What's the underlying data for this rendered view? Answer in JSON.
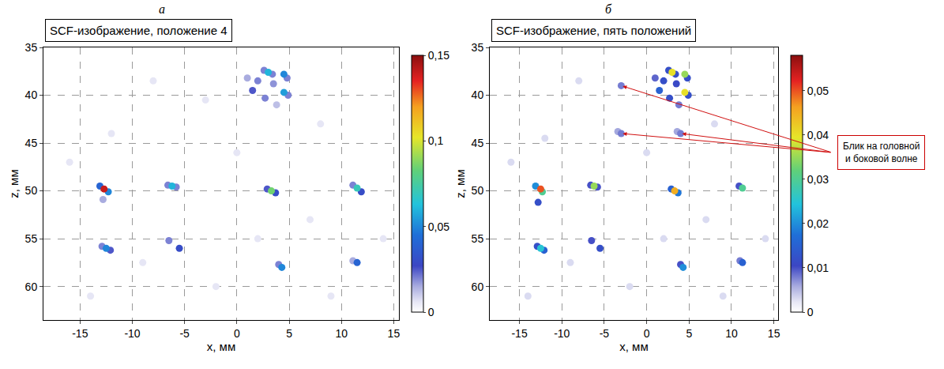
{
  "chart_data": [
    {
      "type": "scatter",
      "letter": "а",
      "title": "SCF-изображение, положение 4",
      "x_label": "x, мм",
      "y_label": "z, мм",
      "xlim": [
        -18.5,
        15.5
      ],
      "ylim": [
        63.5,
        35
      ],
      "xticks": [
        -15,
        -10,
        -5,
        0,
        5,
        10,
        15
      ],
      "yticks": [
        35,
        40,
        45,
        50,
        55,
        60
      ],
      "grid": true,
      "marker": "circle",
      "points": {
        "x": [
          -8,
          -3,
          -12,
          8,
          -16,
          7,
          -9,
          14,
          -2,
          0,
          9,
          -14,
          2,
          2,
          1.5,
          2.7,
          3.5,
          1,
          3.8,
          2.6,
          3.4,
          3,
          4.8,
          4.5,
          4.9,
          4.5,
          -13.1,
          -12.3,
          -12.8,
          -12.7,
          -6.6,
          -5.8,
          -6.2,
          2.9,
          3.7,
          3.3,
          11.1,
          11.9,
          11.5,
          -12.9,
          -12.1,
          -12.5,
          -6.5,
          -5.5,
          4,
          4.3,
          11.1,
          11.5
        ],
        "y": [
          38.5,
          40.5,
          44,
          43,
          47,
          53,
          57.5,
          55,
          60,
          46,
          61,
          61,
          55,
          38.5,
          39.5,
          40.3,
          38.8,
          38.2,
          41,
          37.4,
          37.8,
          37.6,
          38.2,
          37.8,
          40,
          39.7,
          49.5,
          50.1,
          50.9,
          49.8,
          49.4,
          49.6,
          49.5,
          49.8,
          50.2,
          50,
          49.4,
          50.1,
          49.7,
          55.8,
          56.2,
          56,
          55.2,
          56,
          57.7,
          58,
          57.3,
          57.5
        ],
        "values": [
          0.006,
          0.006,
          0.006,
          0.006,
          0.006,
          0.006,
          0.006,
          0.006,
          0.006,
          0.006,
          0.006,
          0.006,
          0.006,
          0.02,
          0.025,
          0.02,
          0.018,
          0.015,
          0.012,
          0.02,
          0.02,
          0.06,
          0.02,
          0.05,
          0.02,
          0.055,
          0.04,
          0.05,
          0.015,
          0.14,
          0.02,
          0.02,
          0.06,
          0.025,
          0.03,
          0.085,
          0.02,
          0.03,
          0.07,
          0.02,
          0.025,
          0.05,
          0.02,
          0.03,
          0.02,
          0.05,
          0.015,
          0.04
        ]
      },
      "colorbar": {
        "range": [
          0,
          0.15
        ],
        "ticks": [
          0,
          {
            "value": 0.05,
            "label": "0,05"
          },
          {
            "value": 0.1,
            "label": "0,1"
          },
          {
            "value": 0.15,
            "label": "0,15"
          }
        ]
      }
    },
    {
      "type": "scatter",
      "letter": "б",
      "title": "SCF-изображение, пять положений",
      "x_label": "x, мм",
      "y_label": "z, мм",
      "xlim": [
        -18.5,
        15.5
      ],
      "ylim": [
        63.5,
        35
      ],
      "xticks": [
        -15,
        -10,
        -5,
        0,
        5,
        10,
        15
      ],
      "yticks": [
        35,
        40,
        45,
        50,
        55,
        60
      ],
      "grid": true,
      "marker": "circle",
      "points": {
        "x": [
          -8,
          -12,
          8,
          -16,
          7,
          -9,
          14,
          -2,
          0,
          9,
          -14,
          2,
          -3,
          -3.4,
          -3,
          3.6,
          4,
          2,
          1.5,
          2.7,
          3.5,
          1,
          3.8,
          2.6,
          3.4,
          3,
          4.8,
          4.5,
          4.9,
          4.5,
          -13.1,
          -12.3,
          -12.8,
          -12.5,
          -6.6,
          -5.8,
          -6.2,
          2.9,
          3.7,
          3.3,
          10.9,
          11.3,
          -12.9,
          -12.1,
          -12.5,
          -6.5,
          -5.5,
          4,
          4.3,
          11,
          11.3
        ],
        "y": [
          38.5,
          44.5,
          43,
          47,
          53,
          57.5,
          55,
          60,
          46,
          61,
          61,
          55,
          39,
          43.8,
          44,
          43.8,
          44,
          38.5,
          39.5,
          40.3,
          38.8,
          38.2,
          41,
          37.4,
          37.8,
          37.6,
          38.2,
          37.8,
          40,
          39.7,
          49.5,
          50.1,
          51.2,
          49.8,
          49.4,
          49.6,
          49.5,
          49.8,
          50.2,
          50,
          49.5,
          49.7,
          55.8,
          56.2,
          56,
          55.2,
          56,
          57.7,
          58,
          57.3,
          57.5
        ],
        "values": [
          0.003,
          0.003,
          0.003,
          0.003,
          0.003,
          0.003,
          0.003,
          0.003,
          0.003,
          0.003,
          0.003,
          0.003,
          0.008,
          0.006,
          0.008,
          0.006,
          0.008,
          0.012,
          0.015,
          0.012,
          0.011,
          0.009,
          0.008,
          0.012,
          0.012,
          0.04,
          0.012,
          0.035,
          0.012,
          0.04,
          0.02,
          0.03,
          0.012,
          0.05,
          0.01,
          0.01,
          0.035,
          0.015,
          0.018,
          0.045,
          0.01,
          0.03,
          0.012,
          0.015,
          0.025,
          0.01,
          0.012,
          0.01,
          0.02,
          0.008,
          0.015
        ]
      },
      "colorbar": {
        "range": [
          0,
          0.058
        ],
        "ticks": [
          0,
          {
            "value": 0.01,
            "label": "0,01"
          },
          {
            "value": 0.02,
            "label": "0,02"
          },
          {
            "value": 0.03,
            "label": "0,03"
          },
          {
            "value": 0.04,
            "label": "0,04"
          },
          {
            "value": 0.05,
            "label": "0,05"
          }
        ]
      },
      "annotations": [
        {
          "text": "Блик на головной и боковой волне",
          "x": [
            -3,
            -3,
            4
          ],
          "y": [
            39,
            44,
            44
          ]
        }
      ]
    }
  ]
}
